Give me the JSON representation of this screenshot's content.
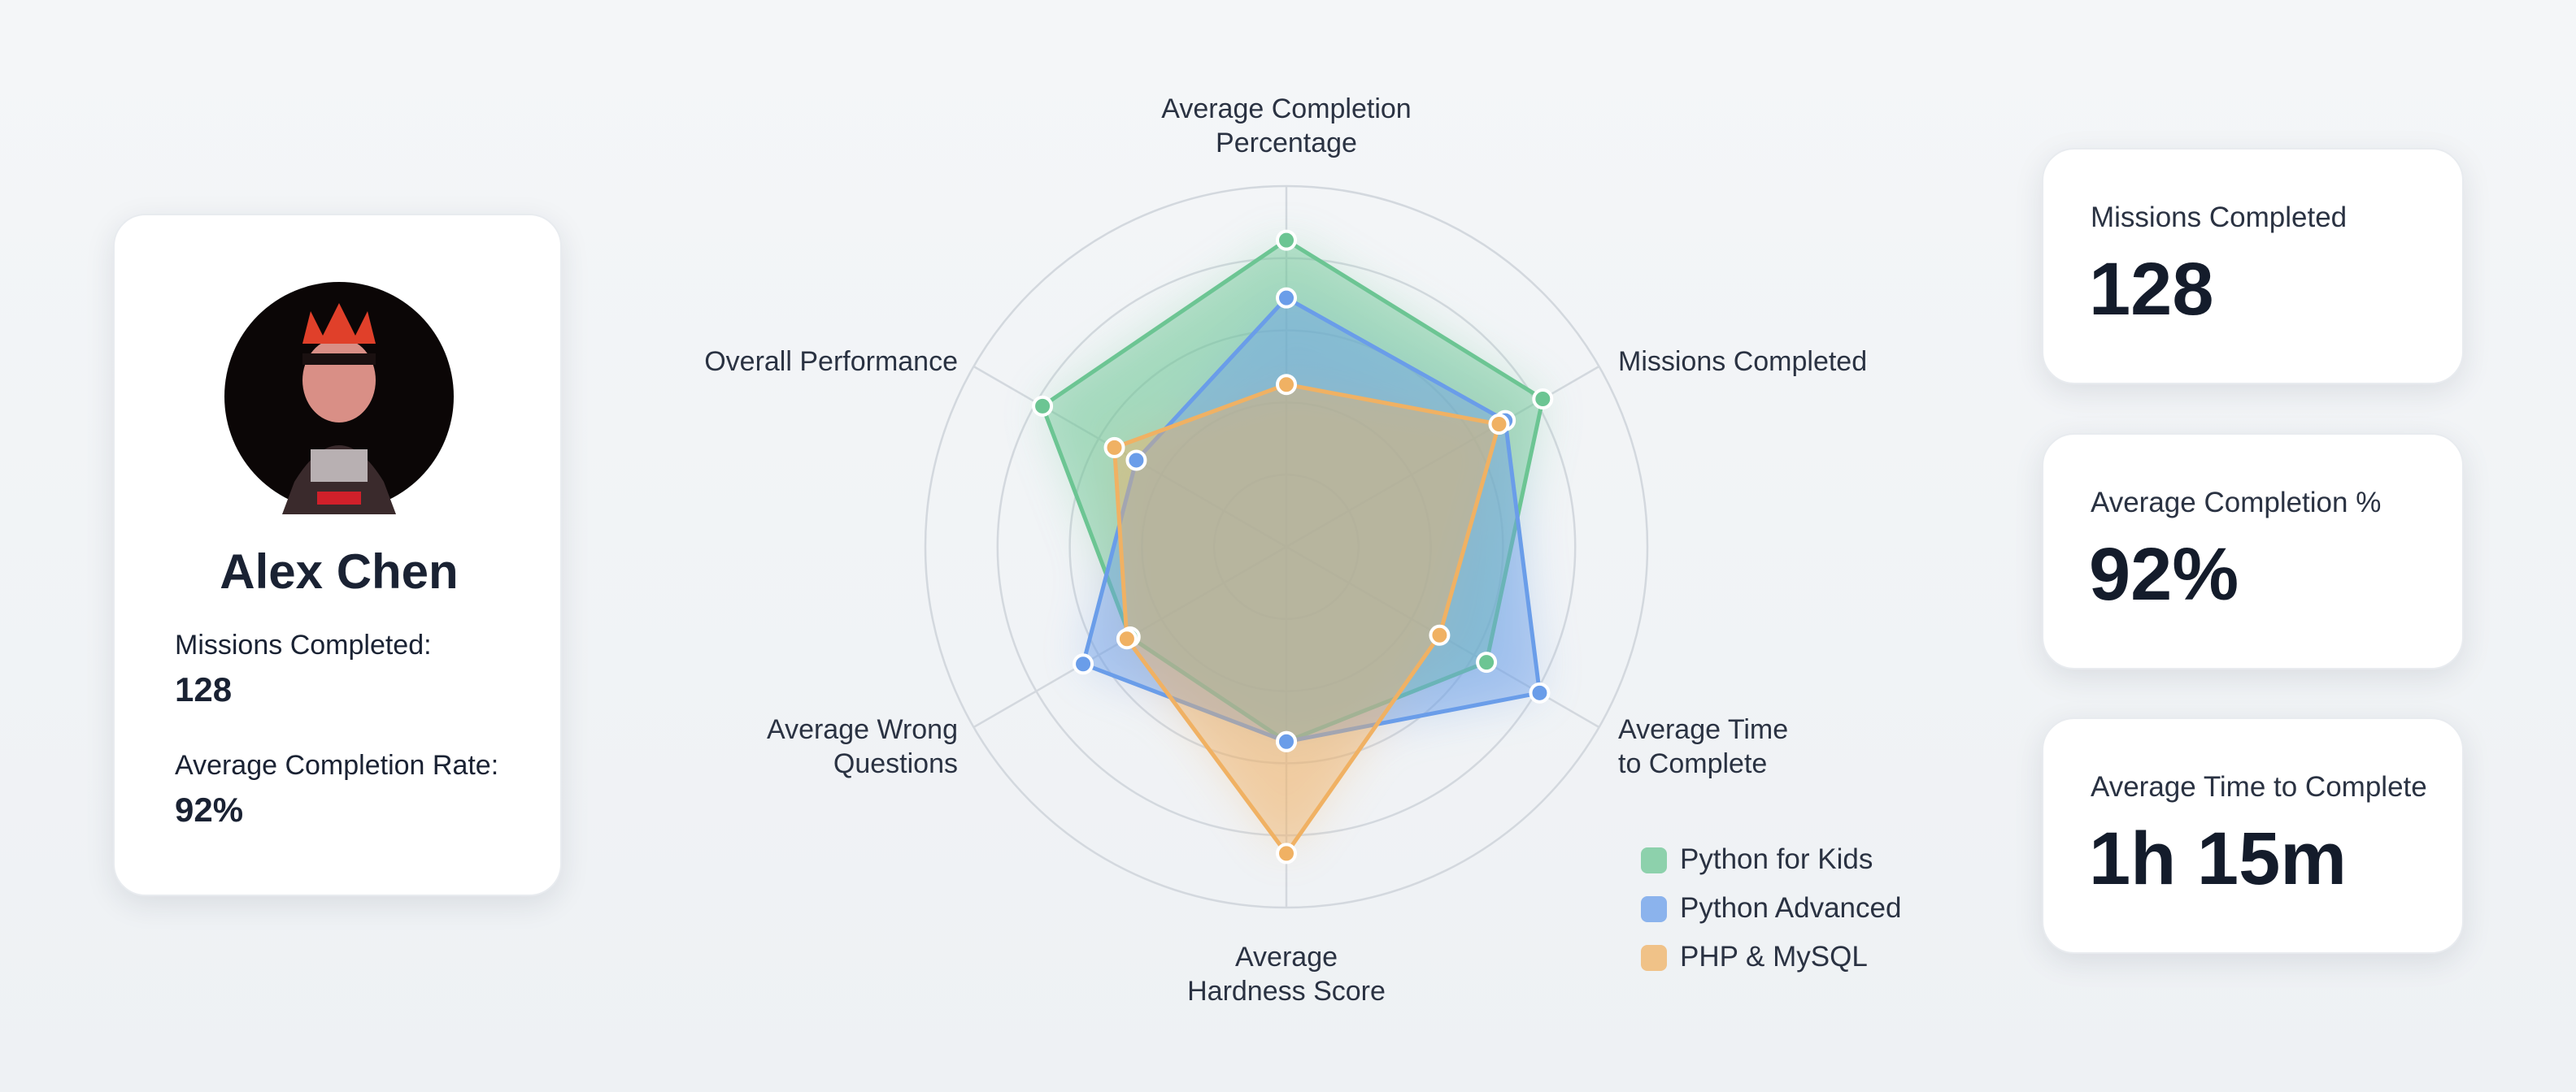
{
  "chart_data": {
    "type": "radar",
    "categories": [
      "Average Completion\nPercentage",
      "Missions Completed",
      "Average Time\nto Complete",
      "Average\nHardness Score",
      "Average Wrong\nQuestions",
      "Overall Performance"
    ],
    "series": [
      {
        "name": "Python for Kids",
        "color": "#6cc593",
        "values": [
          85,
          82,
          64,
          54,
          50,
          78
        ]
      },
      {
        "name": "Python Advanced",
        "color": "#6a9de9",
        "values": [
          69,
          70,
          81,
          54,
          65,
          48
        ]
      },
      {
        "name": "PHP & MySQL",
        "color": "#f0b163",
        "values": [
          45,
          68,
          49,
          85,
          51,
          55
        ]
      }
    ],
    "rlim": [
      0,
      100
    ],
    "rticks": [
      20,
      40,
      60,
      80,
      100
    ],
    "grid": true
  },
  "profile": {
    "name": "Alex Chen",
    "items": [
      {
        "label": "Missions Completed:",
        "value": "128"
      },
      {
        "label": "Average Completion Rate:",
        "value": "92%"
      }
    ]
  },
  "stats": [
    {
      "label": "Missions Completed",
      "value": "128"
    },
    {
      "label": "Average Completion %",
      "value": "92%"
    },
    {
      "label": "Average Time to Complete",
      "value": "1h 15m"
    }
  ]
}
